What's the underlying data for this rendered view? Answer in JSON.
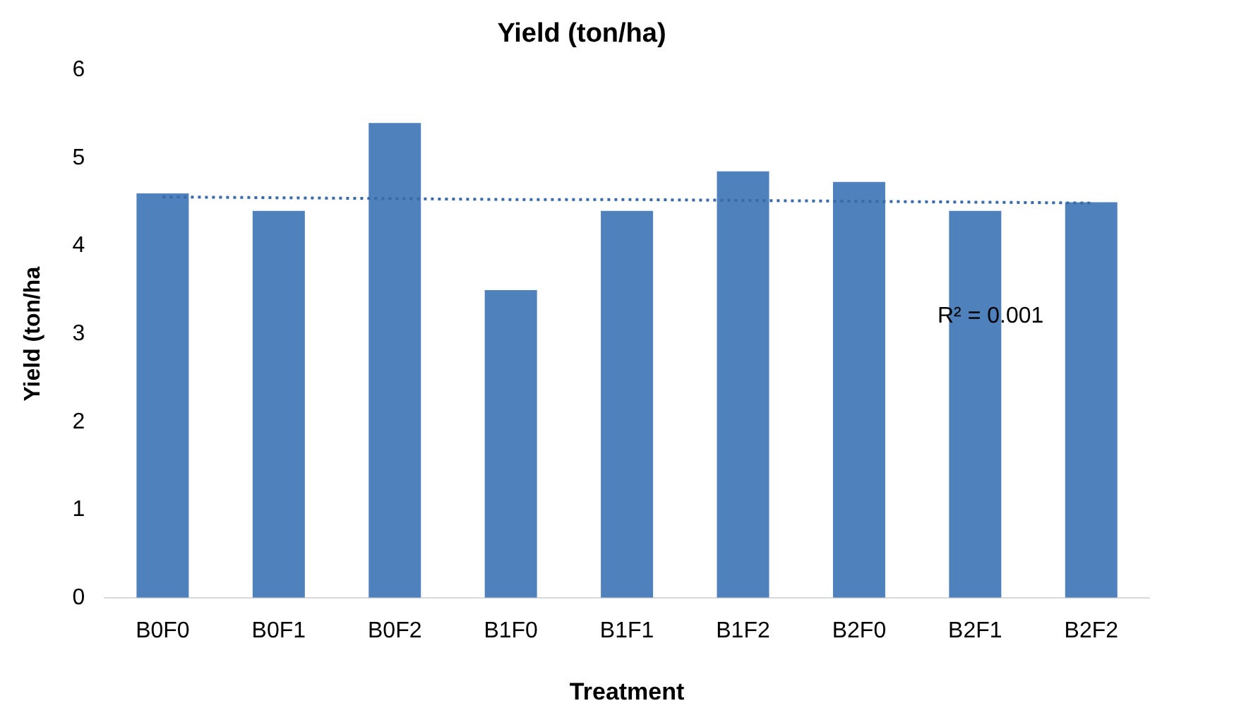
{
  "chart_data": {
    "type": "bar",
    "title": "Yield (ton/ha)",
    "xlabel": "Treatment",
    "ylabel": "Yield (ton/ha",
    "categories": [
      "B0F0",
      "B0F1",
      "B0F2",
      "B1F0",
      "B1F1",
      "B1F2",
      "B2F0",
      "B2F1",
      "B2F2"
    ],
    "series": [
      {
        "color": "#4f81bd",
        "values": [
          4.6,
          4.4,
          5.4,
          3.5,
          4.4,
          4.85,
          4.73,
          4.4,
          4.5
        ]
      },
      {
        "type": "line",
        "color": "#3a6aa8",
        "line_style": "dotted",
        "marker": "none",
        "values": [
          4.56,
          4.55,
          4.54,
          4.53,
          4.53,
          4.52,
          4.51,
          4.5,
          4.49
        ]
      }
    ],
    "ylim": [
      0,
      6
    ],
    "yticks": [
      0,
      1,
      2,
      3,
      4,
      5,
      6
    ],
    "grid": false,
    "legend": false,
    "annotations": [
      "R² = 0.001"
    ]
  }
}
